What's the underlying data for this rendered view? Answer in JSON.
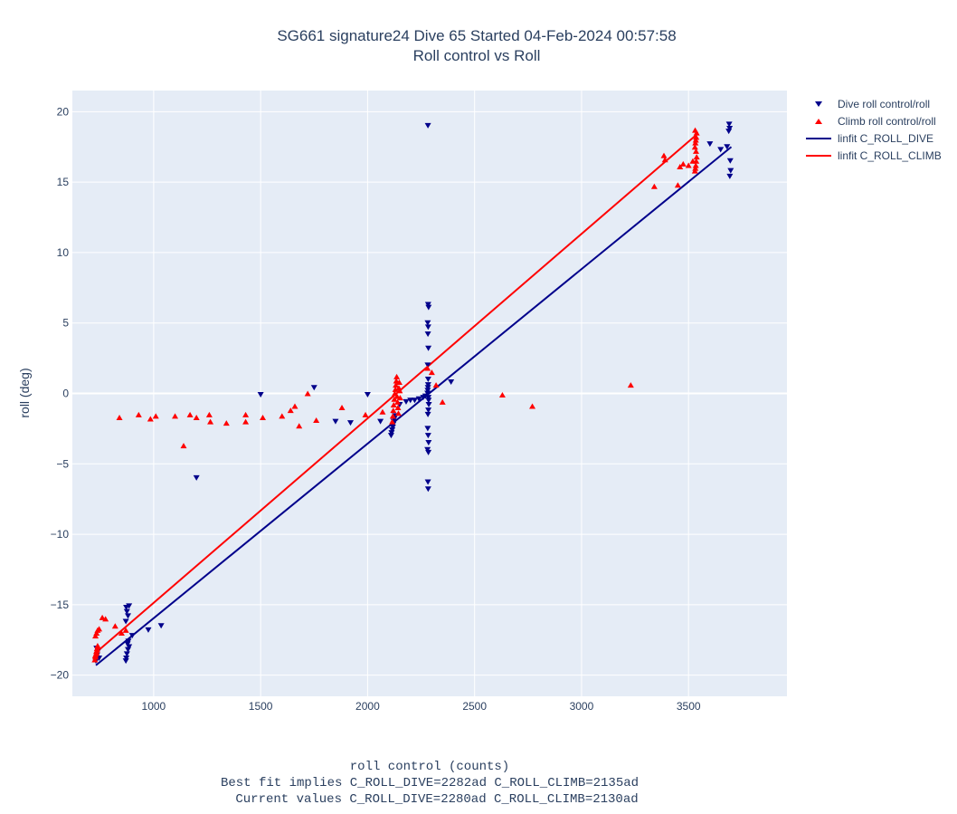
{
  "chart_data": {
    "type": "scatter",
    "title_lines": [
      "SG661 signature24 Dive 65 Started 04-Feb-2024 00:57:58",
      "Roll control vs Roll"
    ],
    "xlabel_lines": [
      "roll control (counts)",
      "Best fit implies C_ROLL_DIVE=2282ad C_ROLL_CLIMB=2135ad",
      "Current values C_ROLL_DIVE=2280ad C_ROLL_CLIMB=2130ad"
    ],
    "ylabel": "roll (deg)",
    "xlim": [
      620,
      3960
    ],
    "ylim": [
      -21.5,
      21.5
    ],
    "x_ticks": [
      1000,
      1500,
      2000,
      2500,
      3000,
      3500
    ],
    "y_ticks": [
      -20,
      -15,
      -10,
      -5,
      0,
      5,
      10,
      15,
      20
    ],
    "y_tick_labels": [
      "−20",
      "−15",
      "−10",
      "−5",
      "0",
      "5",
      "10",
      "15",
      "20"
    ],
    "grid": true,
    "legend_position": "top-right-outside",
    "series": [
      {
        "name": "Dive roll control/roll",
        "kind": "markers",
        "marker": "triangle-down",
        "color": "#00008b",
        "points": [
          [
            730,
            -19.0
          ],
          [
            735,
            -18.6
          ],
          [
            740,
            -18.3
          ],
          [
            733,
            -18.1
          ],
          [
            745,
            -18.8
          ],
          [
            870,
            -19.0
          ],
          [
            875,
            -18.5
          ],
          [
            880,
            -18.2
          ],
          [
            885,
            -18.0
          ],
          [
            872,
            -18.8
          ],
          [
            878,
            -17.8
          ],
          [
            882,
            -17.6
          ],
          [
            900,
            -17.2
          ],
          [
            975,
            -16.8
          ],
          [
            1035,
            -16.5
          ],
          [
            870,
            -16.2
          ],
          [
            880,
            -15.8
          ],
          [
            875,
            -15.5
          ],
          [
            872,
            -15.2
          ],
          [
            885,
            -15.1
          ],
          [
            1200,
            -6.0
          ],
          [
            1500,
            -0.1
          ],
          [
            1750,
            0.4
          ],
          [
            1850,
            -2.0
          ],
          [
            1920,
            -2.1
          ],
          [
            2000,
            -0.1
          ],
          [
            2060,
            -2.0
          ],
          [
            2110,
            -3.0
          ],
          [
            2112,
            -2.8
          ],
          [
            2115,
            -2.6
          ],
          [
            2118,
            -2.4
          ],
          [
            2120,
            -2.2
          ],
          [
            2122,
            -2.0
          ],
          [
            2125,
            -1.8
          ],
          [
            2128,
            -1.6
          ],
          [
            2150,
            -0.8
          ],
          [
            2180,
            -0.6
          ],
          [
            2200,
            -0.5
          ],
          [
            2220,
            -0.5
          ],
          [
            2240,
            -0.4
          ],
          [
            2260,
            -0.3
          ],
          [
            2270,
            -0.2
          ],
          [
            2280,
            0.0
          ],
          [
            2281,
            0.2
          ],
          [
            2282,
            0.4
          ],
          [
            2283,
            0.6
          ],
          [
            2284,
            -0.3
          ],
          [
            2285,
            -0.5
          ],
          [
            2286,
            -0.8
          ],
          [
            2284,
            -1.2
          ],
          [
            2282,
            -1.5
          ],
          [
            2281,
            -2.5
          ],
          [
            2283,
            -3.0
          ],
          [
            2285,
            -3.5
          ],
          [
            2280,
            -4.0
          ],
          [
            2284,
            -4.2
          ],
          [
            2282,
            -6.3
          ],
          [
            2283,
            -6.8
          ],
          [
            2283,
            1.0
          ],
          [
            2281,
            2.0
          ],
          [
            2284,
            3.2
          ],
          [
            2282,
            4.2
          ],
          [
            2283,
            4.7
          ],
          [
            2281,
            5.0
          ],
          [
            2285,
            6.1
          ],
          [
            2283,
            6.3
          ],
          [
            2282,
            19.0
          ],
          [
            2390,
            0.8
          ],
          [
            3600,
            17.7
          ],
          [
            3650,
            17.3
          ],
          [
            3680,
            17.5
          ],
          [
            3690,
            19.1
          ],
          [
            3692,
            18.8
          ],
          [
            3688,
            18.6
          ],
          [
            3695,
            16.5
          ],
          [
            3697,
            15.8
          ],
          [
            3693,
            15.4
          ]
        ]
      },
      {
        "name": "Climb roll control/roll",
        "kind": "markers",
        "marker": "triangle-up",
        "color": "#ff0000",
        "points": [
          [
            725,
            -18.9
          ],
          [
            728,
            -18.7
          ],
          [
            730,
            -18.5
          ],
          [
            732,
            -18.3
          ],
          [
            735,
            -18.1
          ],
          [
            738,
            -17.9
          ],
          [
            727,
            -18.6
          ],
          [
            733,
            -18.4
          ],
          [
            736,
            -18.2
          ],
          [
            740,
            -18.0
          ],
          [
            728,
            -17.2
          ],
          [
            733,
            -17.0
          ],
          [
            738,
            -16.8
          ],
          [
            745,
            -16.7
          ],
          [
            760,
            -15.9
          ],
          [
            775,
            -16.0
          ],
          [
            820,
            -16.5
          ],
          [
            850,
            -17.0
          ],
          [
            870,
            -16.8
          ],
          [
            840,
            -1.7
          ],
          [
            930,
            -1.5
          ],
          [
            985,
            -1.8
          ],
          [
            1010,
            -1.6
          ],
          [
            1100,
            -1.6
          ],
          [
            1140,
            -3.7
          ],
          [
            1170,
            -1.5
          ],
          [
            1200,
            -1.7
          ],
          [
            1260,
            -1.5
          ],
          [
            1265,
            -2.0
          ],
          [
            1340,
            -2.1
          ],
          [
            1430,
            -1.5
          ],
          [
            1430,
            -2.0
          ],
          [
            1510,
            -1.7
          ],
          [
            1600,
            -1.6
          ],
          [
            1640,
            -1.2
          ],
          [
            1660,
            -0.9
          ],
          [
            1680,
            -2.3
          ],
          [
            1720,
            0.0
          ],
          [
            1760,
            -1.9
          ],
          [
            1880,
            -1.0
          ],
          [
            1990,
            -1.5
          ],
          [
            2070,
            -1.3
          ],
          [
            2115,
            -2.0
          ],
          [
            2118,
            -1.6
          ],
          [
            2120,
            -1.2
          ],
          [
            2122,
            -0.8
          ],
          [
            2125,
            -0.4
          ],
          [
            2127,
            0.0
          ],
          [
            2130,
            0.3
          ],
          [
            2132,
            0.6
          ],
          [
            2134,
            0.9
          ],
          [
            2136,
            1.2
          ],
          [
            2138,
            -0.2
          ],
          [
            2140,
            -0.6
          ],
          [
            2142,
            -1.0
          ],
          [
            2144,
            -1.4
          ],
          [
            2146,
            0.4
          ],
          [
            2148,
            0.8
          ],
          [
            2150,
            0.2
          ],
          [
            2152,
            -0.3
          ],
          [
            2280,
            1.8
          ],
          [
            2300,
            1.5
          ],
          [
            2320,
            0.6
          ],
          [
            2350,
            -0.6
          ],
          [
            2630,
            -0.1
          ],
          [
            2770,
            -0.9
          ],
          [
            3230,
            0.6
          ],
          [
            3340,
            14.7
          ],
          [
            3385,
            16.9
          ],
          [
            3390,
            16.6
          ],
          [
            3450,
            14.8
          ],
          [
            3460,
            16.1
          ],
          [
            3475,
            16.3
          ],
          [
            3500,
            16.2
          ],
          [
            3520,
            16.5
          ],
          [
            3530,
            15.8
          ],
          [
            3532,
            16.0
          ],
          [
            3534,
            16.2
          ],
          [
            3536,
            16.5
          ],
          [
            3538,
            16.8
          ],
          [
            3530,
            17.5
          ],
          [
            3532,
            17.8
          ],
          [
            3534,
            18.0
          ],
          [
            3536,
            18.2
          ],
          [
            3538,
            18.5
          ],
          [
            3531,
            18.7
          ],
          [
            3535,
            17.2
          ]
        ]
      },
      {
        "name": "linfit C_ROLL_DIVE",
        "kind": "line",
        "color": "#00008b",
        "points": [
          [
            730,
            -19.3
          ],
          [
            3700,
            17.5
          ]
        ]
      },
      {
        "name": "linfit C_ROLL_CLIMB",
        "kind": "line",
        "color": "#ff0000",
        "points": [
          [
            730,
            -18.4
          ],
          [
            3540,
            18.4
          ]
        ]
      }
    ]
  }
}
